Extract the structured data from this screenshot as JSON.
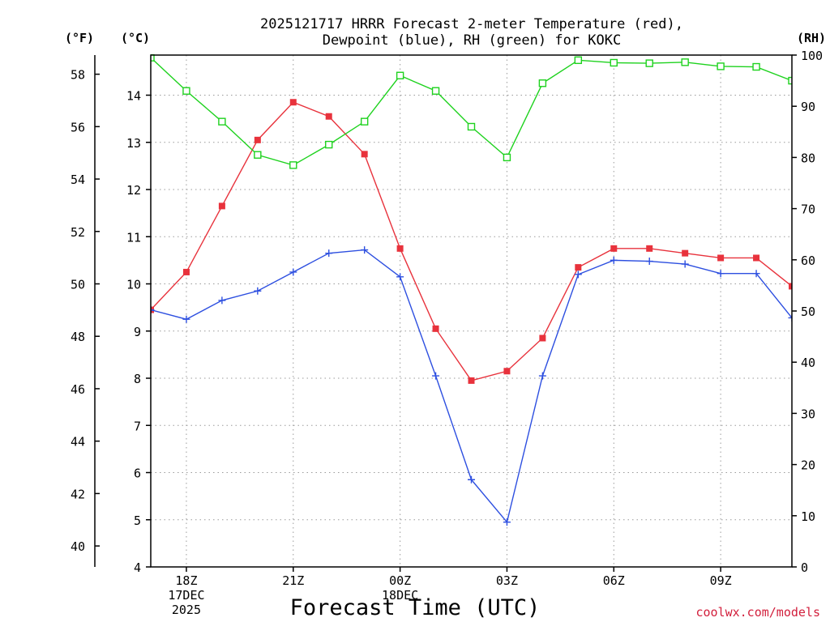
{
  "title_lines": [
    "2025121717 HRRR Forecast 2-meter Temperature (red),",
    "Dewpoint (blue), RH (green) for KOKC"
  ],
  "watermark": "coolwx.com/models",
  "colors": {
    "temperature": "#e8323c",
    "dewpoint": "#2d4fe0",
    "rh": "#1ed21e",
    "grid": "#9a9a9a"
  },
  "chart_data": {
    "type": "line",
    "title": "2025121717 HRRR Forecast 2-meter Temperature (red), Dewpoint (blue), RH (green) for KOKC",
    "xlabel": "Forecast Time (UTC)",
    "x": [
      17,
      18,
      19,
      20,
      21,
      22,
      23,
      24,
      25,
      26,
      27,
      28,
      29,
      30,
      31,
      32,
      33,
      34,
      35
    ],
    "xlim": [
      17,
      35
    ],
    "x_ticks": [
      {
        "x": 18,
        "lines": [
          "18Z",
          "17DEC",
          "2025"
        ]
      },
      {
        "x": 21,
        "lines": [
          "21Z"
        ]
      },
      {
        "x": 24,
        "lines": [
          "00Z",
          "18DEC"
        ]
      },
      {
        "x": 27,
        "lines": [
          "03Z"
        ]
      },
      {
        "x": 30,
        "lines": [
          "06Z"
        ]
      },
      {
        "x": 33,
        "lines": [
          "09Z"
        ]
      }
    ],
    "axes": {
      "celsius": {
        "label": "(°C)",
        "ylim": [
          4,
          14.85
        ],
        "ticks": [
          4,
          5,
          6,
          7,
          8,
          9,
          10,
          11,
          12,
          13,
          14
        ]
      },
      "fahrenheit": {
        "label": "(°F)",
        "ylim": [
          39.2,
          58.73
        ],
        "ticks": [
          40,
          42,
          44,
          46,
          48,
          50,
          52,
          54,
          56,
          58
        ]
      },
      "rh": {
        "label": "(RH)",
        "ylim": [
          0,
          100
        ],
        "ticks": [
          0,
          10,
          20,
          30,
          40,
          50,
          60,
          70,
          80,
          90,
          100
        ]
      }
    },
    "series": [
      {
        "name": "2-meter Temperature",
        "axis": "celsius",
        "color": "temperature",
        "marker": "filled-square",
        "values": [
          9.45,
          10.25,
          11.65,
          13.05,
          13.85,
          13.55,
          12.75,
          10.75,
          9.05,
          7.95,
          8.15,
          8.85,
          10.35,
          10.75,
          10.75,
          10.65,
          10.55,
          10.55,
          9.95
        ]
      },
      {
        "name": "Dewpoint",
        "axis": "celsius",
        "color": "dewpoint",
        "marker": "plus",
        "values": [
          9.45,
          9.25,
          9.65,
          9.85,
          10.25,
          10.65,
          10.72,
          10.15,
          8.05,
          5.85,
          4.95,
          8.05,
          10.2,
          10.5,
          10.48,
          10.42,
          10.22,
          10.22,
          9.28
        ]
      },
      {
        "name": "RH",
        "axis": "rh",
        "color": "rh",
        "marker": "open-square",
        "values": [
          99.5,
          93.0,
          87.0,
          80.5,
          78.5,
          82.5,
          87.0,
          96.0,
          93.0,
          86.0,
          80.0,
          94.5,
          99.0,
          98.5,
          98.4,
          98.6,
          97.8,
          97.7,
          95.0
        ]
      }
    ]
  }
}
